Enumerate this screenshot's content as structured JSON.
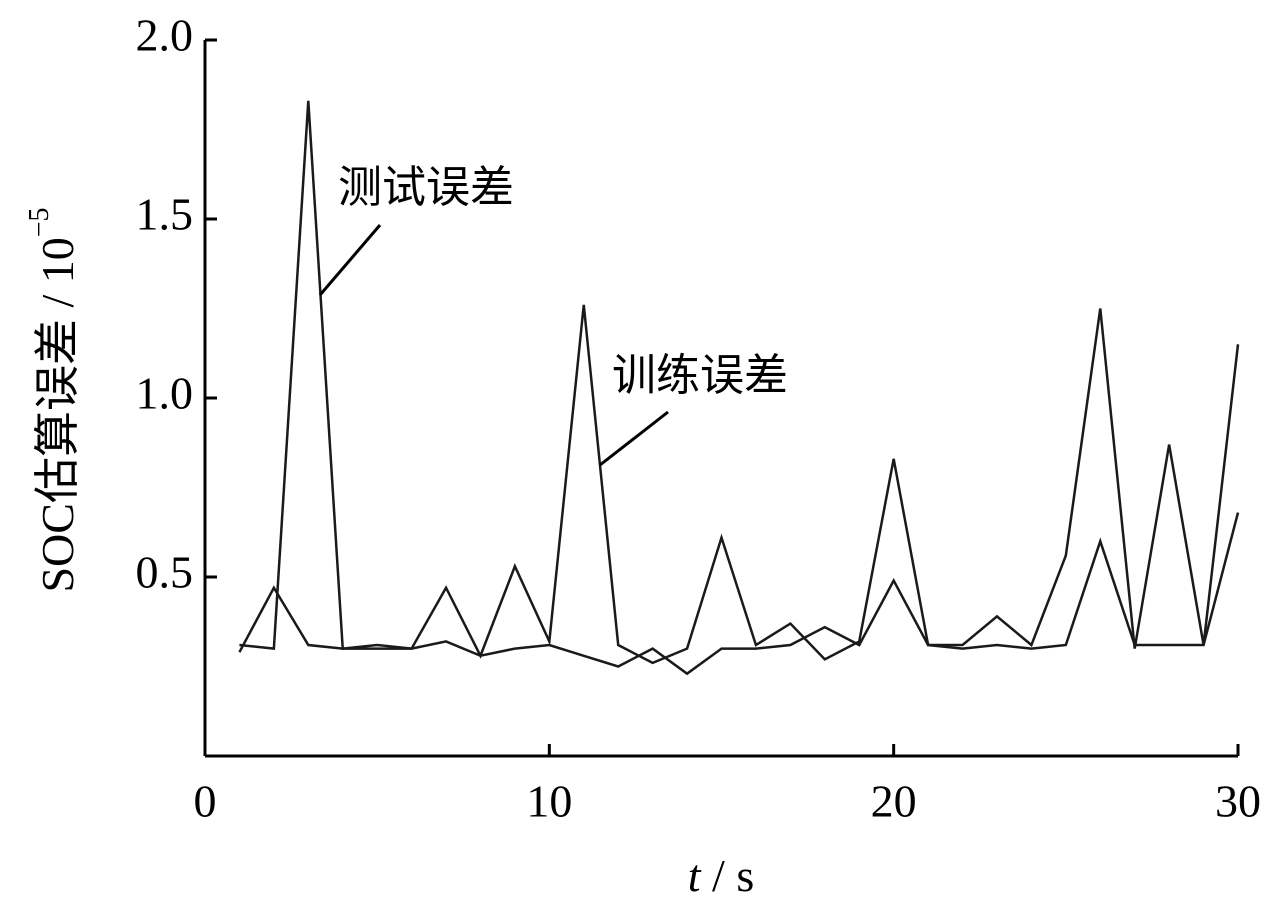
{
  "chart_data": {
    "type": "line",
    "ylabel": "SOC估算误差 / 10",
    "ylabel_exponent": "−5",
    "xlabel_var": "t",
    "xlabel_unit": " / s",
    "x": [
      1,
      2,
      3,
      4,
      5,
      6,
      7,
      8,
      9,
      10,
      11,
      12,
      13,
      14,
      15,
      16,
      17,
      18,
      19,
      20,
      21,
      22,
      23,
      24,
      25,
      26,
      27,
      28,
      29,
      30
    ],
    "series": [
      {
        "name": "测试误差",
        "color": "#1a1a1a",
        "values": [
          0.31,
          0.3,
          1.83,
          0.3,
          0.31,
          0.3,
          0.47,
          0.28,
          0.53,
          0.32,
          1.26,
          0.31,
          0.26,
          0.3,
          0.61,
          0.31,
          0.37,
          0.27,
          0.32,
          0.83,
          0.31,
          0.31,
          0.39,
          0.31,
          0.56,
          1.25,
          0.3,
          0.87,
          0.31,
          1.15
        ]
      },
      {
        "name": "训练误差",
        "color": "#1a1a1a",
        "values": [
          0.29,
          0.47,
          0.31,
          0.3,
          0.3,
          0.3,
          0.32,
          0.28,
          0.3,
          0.31,
          0.28,
          0.25,
          0.3,
          0.23,
          0.3,
          0.3,
          0.31,
          0.36,
          0.31,
          0.49,
          0.31,
          0.3,
          0.31,
          0.3,
          0.31,
          0.6,
          0.31,
          0.31,
          0.31,
          0.68
        ]
      }
    ],
    "xlim": [
      0,
      30
    ],
    "xticks": [
      0,
      10,
      20,
      30
    ],
    "ylim": [
      0,
      2.0
    ],
    "yticks": [
      0.5,
      {
        "value": 1.0,
        "label": "1.0"
      },
      1.5,
      {
        "value": 2.0,
        "label": "2.0"
      }
    ]
  }
}
